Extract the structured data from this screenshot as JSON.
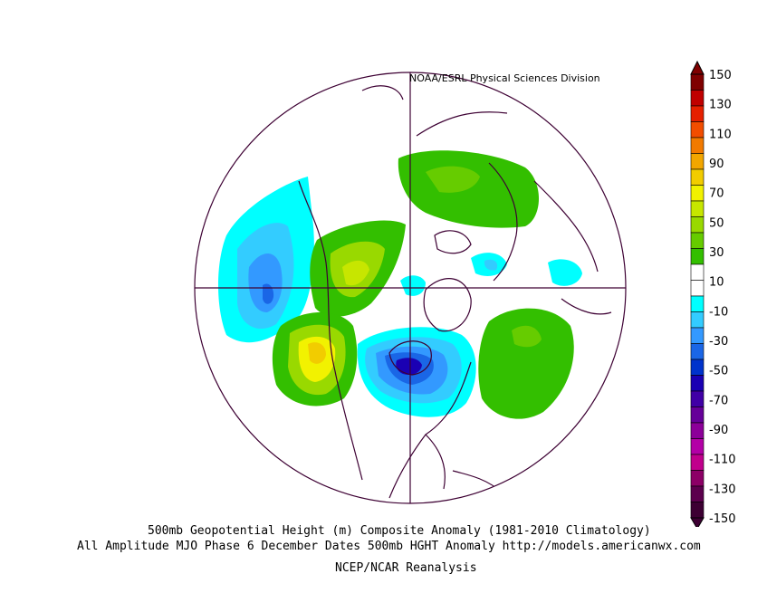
{
  "credit": "NOAA/ESRL Physical Sciences Division",
  "caption_line1": "500mb Geopotential Height (m) Composite Anomaly (1981-2010 Climatology)",
  "caption_line2": "All Amplitude MJO Phase 6 December Dates 500mb HGHT Anomaly http://models.americanwx.com",
  "caption_line3": "NCEP/NCAR Reanalysis",
  "colorbar": {
    "labels": [
      "150",
      "130",
      "110",
      "90",
      "70",
      "50",
      "30",
      "10",
      "-10",
      "-30",
      "-50",
      "-70",
      "-90",
      "-110",
      "-130",
      "-150"
    ],
    "colors": [
      "#7f0000",
      "#c00000",
      "#e62000",
      "#f24d00",
      "#f27a00",
      "#f2a600",
      "#f2cc00",
      "#f2f200",
      "#c7e600",
      "#99d900",
      "#66cc00",
      "#33bf00",
      "#ffffff",
      "#ffffff",
      "#00ffff",
      "#33ccff",
      "#3399ff",
      "#1a66e6",
      "#0033cc",
      "#1a00b3",
      "#4000a6",
      "#660099",
      "#8c0099",
      "#b300a6",
      "#c0008c",
      "#8c0066",
      "#5c004d",
      "#3d0033"
    ]
  }
}
